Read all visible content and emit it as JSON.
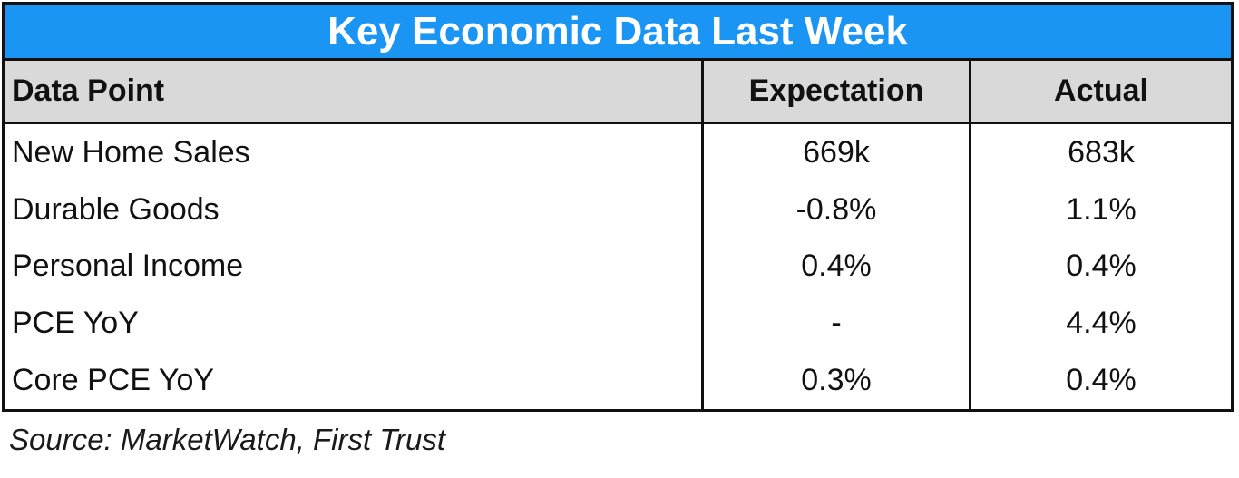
{
  "title": "Key Economic Data Last Week",
  "columns": [
    "Data Point",
    "Expectation",
    "Actual"
  ],
  "rows": [
    {
      "data_point": "New Home Sales",
      "expectation": "669k",
      "actual": "683k"
    },
    {
      "data_point": "Durable Goods",
      "expectation": "-0.8%",
      "actual": "1.1%"
    },
    {
      "data_point": "Personal Income",
      "expectation": "0.4%",
      "actual": "0.4%"
    },
    {
      "data_point": "PCE YoY",
      "expectation": "-",
      "actual": "4.4%"
    },
    {
      "data_point": "Core PCE YoY",
      "expectation": "0.3%",
      "actual": "0.4%"
    }
  ],
  "source": "Source: MarketWatch, First Trust",
  "colors": {
    "title_background": "#1a95f3",
    "header_background": "#d9d9d9",
    "border": "#111111"
  }
}
